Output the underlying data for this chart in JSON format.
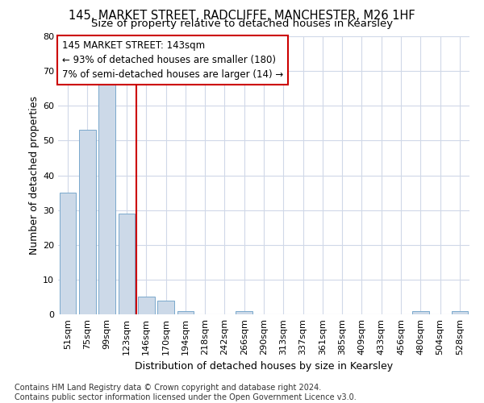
{
  "title": "145, MARKET STREET, RADCLIFFE, MANCHESTER, M26 1HF",
  "subtitle": "Size of property relative to detached houses in Kearsley",
  "xlabel_bottom": "Distribution of detached houses by size in Kearsley",
  "ylabel": "Number of detached properties",
  "footnote": "Contains HM Land Registry data © Crown copyright and database right 2024.\nContains public sector information licensed under the Open Government Licence v3.0.",
  "bin_labels": [
    "51sqm",
    "75sqm",
    "99sqm",
    "123sqm",
    "146sqm",
    "170sqm",
    "194sqm",
    "218sqm",
    "242sqm",
    "266sqm",
    "290sqm",
    "313sqm",
    "337sqm",
    "361sqm",
    "385sqm",
    "409sqm",
    "433sqm",
    "456sqm",
    "480sqm",
    "504sqm",
    "528sqm"
  ],
  "bar_values": [
    35,
    53,
    66,
    29,
    5,
    4,
    1,
    0,
    0,
    1,
    0,
    0,
    0,
    0,
    0,
    0,
    0,
    0,
    1,
    0,
    1
  ],
  "bar_color": "#ccd9e8",
  "bar_edge_color": "#7aa8cc",
  "ylim": [
    0,
    80
  ],
  "yticks": [
    0,
    10,
    20,
    30,
    40,
    50,
    60,
    70,
    80
  ],
  "property_line_color": "#cc0000",
  "annotation_text": "145 MARKET STREET: 143sqm\n← 93% of detached houses are smaller (180)\n7% of semi-detached houses are larger (14) →",
  "annotation_box_color": "#cc0000",
  "background_color": "#ffffff",
  "grid_color": "#d0d8e8",
  "title_fontsize": 10.5,
  "subtitle_fontsize": 9.5,
  "axis_label_fontsize": 9,
  "tick_fontsize": 8,
  "annotation_fontsize": 8.5,
  "footnote_fontsize": 7
}
